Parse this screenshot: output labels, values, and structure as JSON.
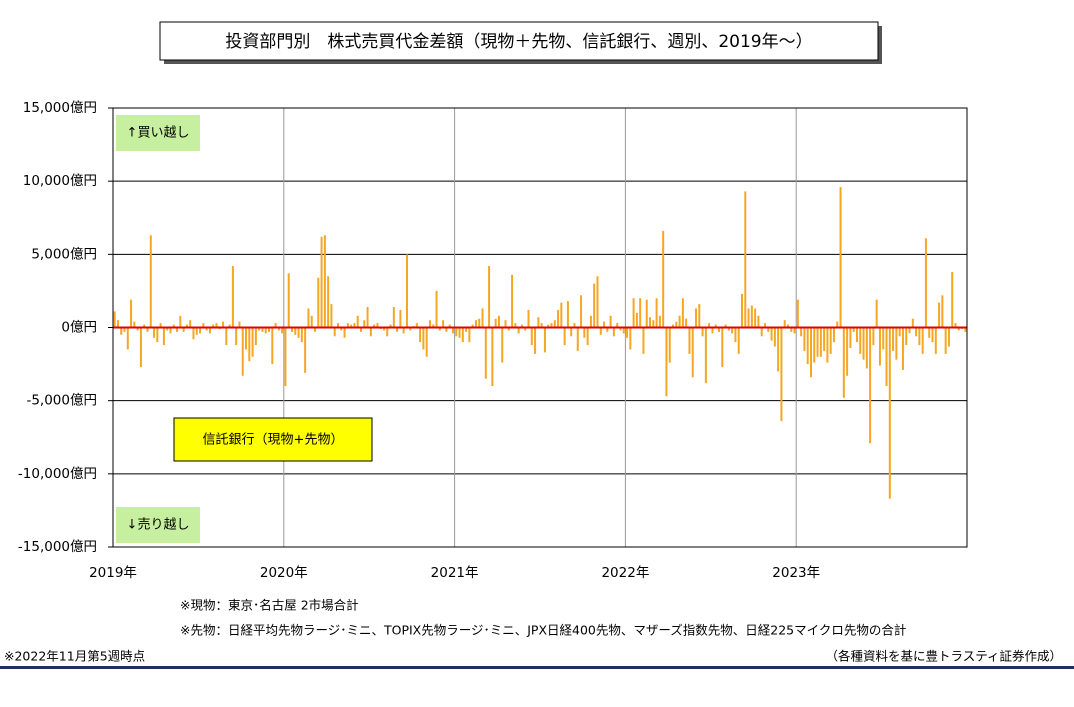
{
  "chart_data": {
    "type": "bar",
    "title": "投資部門別　株式売買代金差額（現物＋先物、信託銀行、週別、2019年～）",
    "series": [
      {
        "name": "信託銀行（現物+先物）",
        "color": "#f5a623",
        "values": [
          1100,
          500,
          -500,
          -300,
          -1500,
          1900,
          400,
          -200,
          -2700,
          200,
          -300,
          6300,
          -700,
          -1000,
          300,
          -1200,
          -200,
          -400,
          200,
          -300,
          800,
          -300,
          200,
          500,
          -800,
          -500,
          -400,
          300,
          -200,
          -400,
          200,
          300,
          -100,
          400,
          -1200,
          200,
          4200,
          -1200,
          400,
          -3300,
          -1500,
          -2300,
          -2000,
          -1200,
          -200,
          -300,
          -400,
          -300,
          -2500,
          300,
          -200,
          -400,
          -4000,
          3700,
          -300,
          -500,
          -700,
          -1000,
          -3100,
          1300,
          800,
          -300,
          3400,
          6200,
          6300,
          3500,
          1600,
          -600,
          300,
          -200,
          -700,
          300,
          200,
          300,
          800,
          -300,
          500,
          1400,
          -600,
          200,
          300,
          -100,
          -200,
          -600,
          200,
          1400,
          -300,
          1200,
          -400,
          5000,
          -200,
          100,
          300,
          -1000,
          -1500,
          -2000,
          500,
          200,
          2500,
          -200,
          500,
          -300,
          200,
          -400,
          -600,
          -700,
          -1000,
          -300,
          -1000,
          200,
          500,
          600,
          1300,
          -3500,
          4200,
          -4000,
          600,
          800,
          -2400,
          500,
          -200,
          3600,
          300,
          -400,
          200,
          -200,
          1200,
          -1200,
          -1800,
          700,
          300,
          -1700,
          200,
          300,
          500,
          1200,
          1700,
          -1200,
          1800,
          -600,
          300,
          -1600,
          2200,
          -700,
          -1200,
          800,
          3000,
          3500,
          -500,
          400,
          -300,
          800,
          -600,
          300,
          -200,
          -400,
          -700,
          -1500,
          2000,
          1000,
          2000,
          -1800,
          1900,
          700,
          500,
          2000,
          800,
          6600,
          -4700,
          -2400,
          200,
          400,
          800,
          2000,
          600,
          -1800,
          -3400,
          1300,
          1600,
          -600,
          -3800,
          300,
          -400,
          200,
          -300,
          -2700,
          200,
          -200,
          -400,
          -1000,
          -1800,
          2300,
          9300,
          1300,
          1500,
          1300,
          800,
          -600,
          300,
          -300,
          -900,
          -1300,
          -3000,
          -6400,
          500,
          200,
          -300,
          -400,
          1900,
          -600,
          -1600,
          -2500,
          -3400,
          -2400,
          -2000,
          -2000,
          -1600,
          -2400,
          -1800,
          -1000,
          400,
          9600,
          -4800,
          -3300,
          -1400,
          -300,
          -1000,
          -1800,
          -2200,
          -2800,
          -7900,
          -1200,
          1900,
          -2600,
          -1500,
          -4000,
          -11700,
          -1600,
          -2200,
          -600,
          -2900,
          -1200,
          -400,
          600,
          -600,
          -1200,
          -1800,
          6100,
          -700,
          -1000,
          -1800,
          1700,
          2200,
          -1800,
          -1300,
          3800,
          300,
          -200,
          -100,
          -300
        ]
      }
    ],
    "categories": [
      "2019年",
      null,
      null,
      null,
      null,
      null,
      null,
      null,
      null,
      null,
      null,
      null,
      null,
      null,
      null,
      null,
      null,
      null,
      null,
      null,
      null,
      null,
      null,
      null,
      null,
      null,
      null,
      null,
      null,
      null,
      null,
      null,
      null,
      null,
      null,
      null,
      null,
      null,
      null,
      null,
      null,
      null,
      null,
      null,
      null,
      null,
      null,
      null,
      null,
      null,
      null,
      null,
      "2020年",
      null,
      null,
      null,
      null,
      null,
      null,
      null,
      null,
      null,
      null,
      null,
      null,
      null,
      null,
      null,
      null,
      null,
      null,
      null,
      null,
      null,
      null,
      null,
      null,
      null,
      null,
      null,
      null,
      null,
      null,
      null,
      null,
      null,
      null,
      null,
      null,
      null,
      null,
      null,
      null,
      null,
      null,
      null,
      null,
      null,
      null,
      null,
      null,
      null,
      null,
      null,
      "2021年",
      null,
      null,
      null,
      null,
      null,
      null,
      null,
      null,
      null,
      null,
      null,
      null,
      null,
      null,
      null,
      null,
      null,
      null,
      null,
      null,
      null,
      null,
      null,
      null,
      null,
      null,
      null,
      null,
      null,
      null,
      null,
      null,
      null,
      null,
      null,
      null,
      null,
      null,
      null,
      null,
      null,
      null,
      null,
      null,
      null,
      null,
      null,
      null,
      null,
      null,
      null,
      "2022年",
      null,
      null,
      null,
      null,
      null,
      null,
      null,
      null,
      null,
      null,
      null,
      null,
      null,
      null,
      null,
      null,
      null,
      null,
      null,
      null,
      null,
      null,
      null,
      null,
      null,
      null,
      null,
      null,
      null,
      null,
      null,
      null,
      null,
      null,
      null,
      null,
      null,
      null,
      null,
      null,
      null,
      null,
      null,
      null,
      null,
      null,
      null,
      null,
      null,
      null,
      null,
      "2023年",
      null,
      null,
      null,
      null,
      null,
      null,
      null,
      null,
      null,
      null,
      null,
      null,
      null,
      null,
      null,
      null,
      null,
      null,
      null,
      null,
      null,
      null,
      null,
      null,
      null,
      null,
      null,
      null,
      null,
      null,
      null,
      null,
      null,
      null,
      null,
      null,
      null,
      null,
      null,
      null,
      null,
      null,
      null,
      null,
      null,
      null,
      null,
      null,
      null,
      null,
      null
    ],
    "ylim": [
      -15000,
      15000
    ],
    "yticks": [
      {
        "value": -15000,
        "label": "-15,000億円"
      },
      {
        "value": -10000,
        "label": "-10,000億円"
      },
      {
        "value": -5000,
        "label": "-5,000億円"
      },
      {
        "value": 0,
        "label": "0億円"
      },
      {
        "value": 5000,
        "label": "5,000億円"
      },
      {
        "value": 10000,
        "label": "10,000億円"
      },
      {
        "value": 15000,
        "label": "15,000億円"
      }
    ],
    "grid": true,
    "annotations": [
      "↑買い越し",
      "↓売り越し"
    ],
    "notes": [
      "※現物：東京･名古屋 2市場合計",
      "※先物：日経平均先物ラージ･ミニ、TOPIX先物ラージ･ミニ、JPX日経400先物、マザーズ指数先物、日経225マイクロ先物の合計",
      "※2022年11月第5週時点",
      "（各種資料を基に豊トラスティ証券作成）"
    ]
  }
}
